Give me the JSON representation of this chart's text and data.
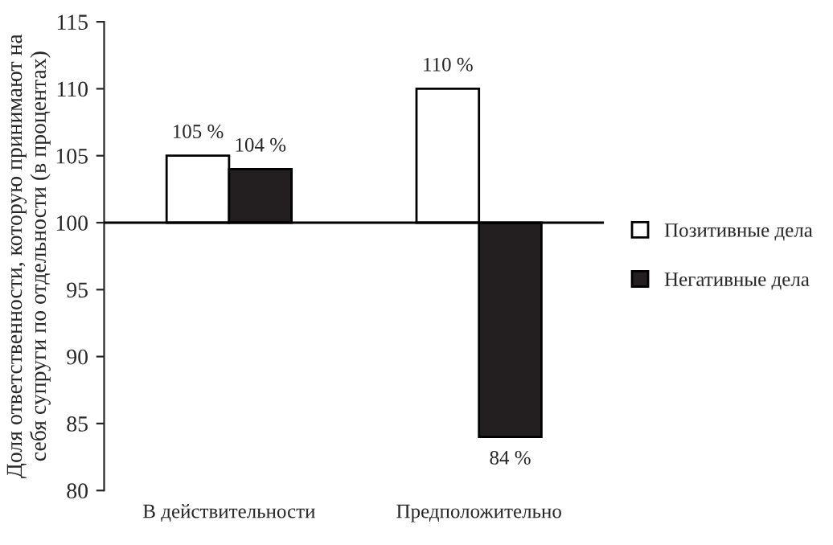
{
  "chart_data": {
    "type": "bar",
    "ylabel": "Доля ответственности, которую принимают на\nсебя супруги по отдельности (в процентах)",
    "categories": [
      "В действительности",
      "Предположительно"
    ],
    "series": [
      {
        "name": "Позитивные дела",
        "color": "#ffffff",
        "base": [
          100,
          100
        ],
        "values": [
          5,
          10
        ],
        "value_labels": [
          "105 %",
          "110 %"
        ]
      },
      {
        "name": "Негативные дела",
        "color": "#231f20",
        "base": [
          100,
          100
        ],
        "values": [
          4,
          -16
        ],
        "value_labels": [
          "104 %",
          "84 %"
        ]
      }
    ],
    "ylim": [
      80,
      115
    ],
    "yticks": [
      80,
      85,
      90,
      95,
      100,
      105,
      110,
      115
    ],
    "ref_lines": [
      {
        "axis": "y",
        "value": 100,
        "color": "#000000"
      }
    ],
    "legend": "right",
    "grid": false
  }
}
